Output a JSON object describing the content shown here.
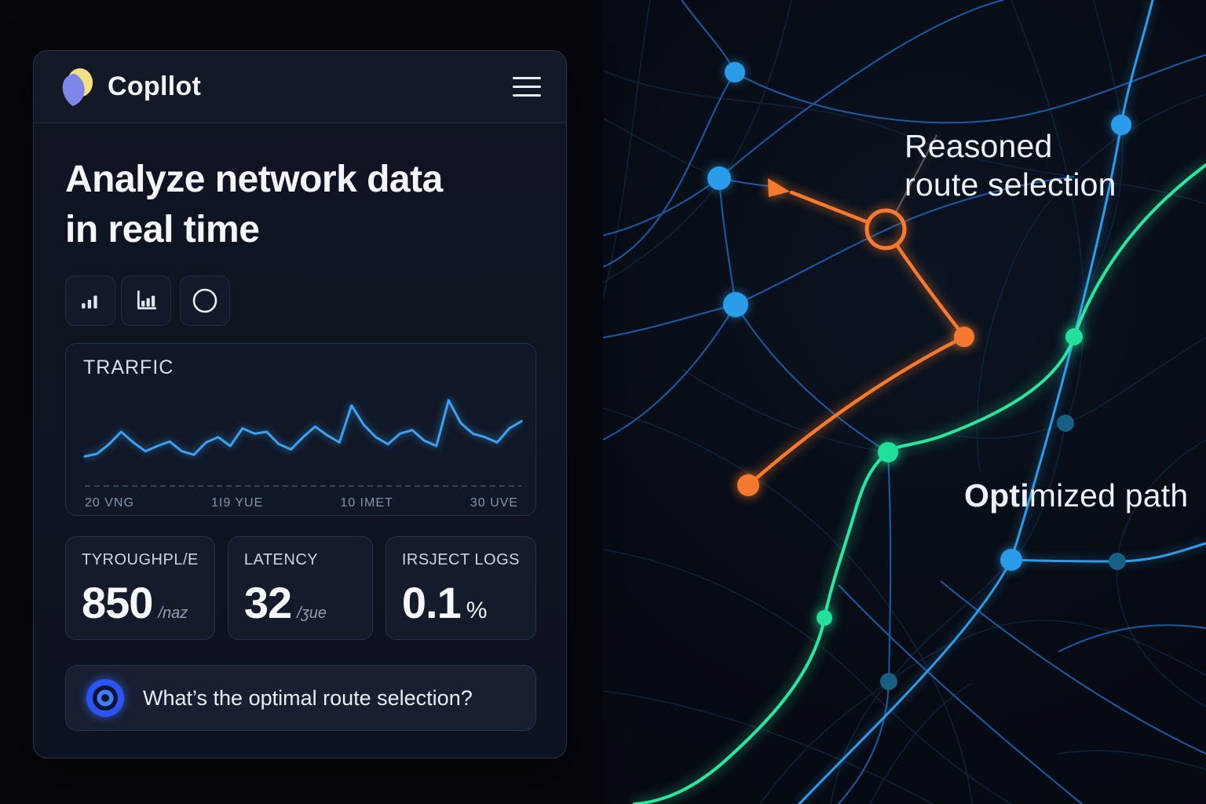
{
  "app": {
    "brand": "Copllot",
    "headline_line1": "Analyze network data",
    "headline_line2": "in real time",
    "prompt": {
      "text": "What’s the optimal route selection?"
    }
  },
  "icons": {
    "logo": "copilot-logo",
    "menu": "hamburger-menu",
    "toolbar": [
      "signal-bars",
      "bar-chart",
      "circle"
    ],
    "prompt": "target"
  },
  "stats": [
    {
      "label": "TYROUGHPL/E",
      "value": "850",
      "unit": "/naz"
    },
    {
      "label": "LATENCY",
      "value": "32",
      "unit": "/ʒue"
    },
    {
      "label": "IRSJECT LOGS",
      "value": "0.1",
      "unit": "%"
    }
  ],
  "chart_data": {
    "type": "line",
    "title": "TRARFIC",
    "x_tick_labels": [
      "20 VNG",
      "1I9 YUE",
      "10 IMET",
      "30 UVE"
    ],
    "series": [
      {
        "name": "traffic",
        "values": [
          30,
          33,
          44,
          58,
          46,
          36,
          42,
          47,
          36,
          32,
          46,
          52,
          42,
          62,
          56,
          58,
          44,
          38,
          52,
          64,
          54,
          46,
          88,
          66,
          52,
          44,
          56,
          60,
          48,
          42,
          94,
          68,
          56,
          52,
          46,
          62,
          70
        ]
      }
    ],
    "ylim": [
      0,
      100
    ],
    "grid": false,
    "legend": "none",
    "line_color": "#3DA1F0"
  },
  "map": {
    "annotation_reasoned_line1": "Reasoned",
    "annotation_reasoned_line2": "route selection",
    "annotation_optimized_bold": "Opti",
    "annotation_optimized_rest": "mized path",
    "colors": {
      "reasoned_route": "#F5792F",
      "optimized_path": "#2AE6A0",
      "network_line": "#1D5FAE",
      "node_blue": "#2B9CE9",
      "node_teal": "#176083"
    }
  }
}
